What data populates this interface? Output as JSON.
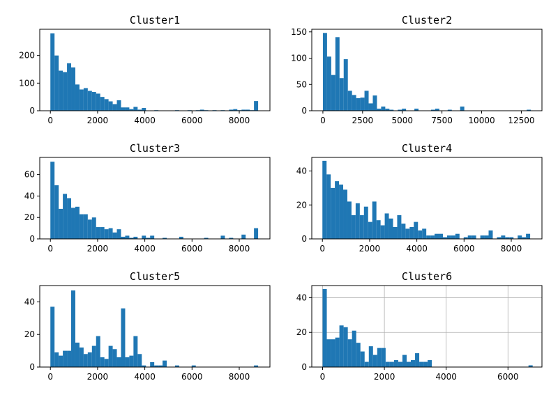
{
  "chart_data": [
    {
      "type": "bar",
      "title": "Cluster1",
      "xlim": [
        -450,
        9300
      ],
      "ylim": [
        0,
        295
      ],
      "grid": false,
      "xticks": [
        0,
        2000,
        4000,
        6000,
        8000
      ],
      "xtick_labels": [
        "0",
        "2000",
        "4000",
        "6000",
        "8000"
      ],
      "yticks": [
        0,
        100,
        200
      ],
      "ytick_labels": [
        "0",
        "100",
        "200"
      ],
      "bin_start": 0,
      "bin_width": 176,
      "values": [
        280,
        200,
        145,
        140,
        172,
        157,
        95,
        77,
        82,
        72,
        68,
        62,
        50,
        42,
        34,
        24,
        38,
        12,
        12,
        6,
        14,
        4,
        10,
        0,
        0,
        2,
        0,
        0,
        0,
        0,
        2,
        0,
        0,
        2,
        0,
        2,
        4,
        2,
        0,
        2,
        0,
        2,
        0,
        4,
        6,
        2,
        4,
        4,
        2,
        35
      ]
    },
    {
      "type": "bar",
      "title": "Cluster2",
      "xlim": [
        -700,
        13800
      ],
      "ylim": [
        0,
        155
      ],
      "grid": false,
      "xticks": [
        0,
        2500,
        5000,
        7500,
        10000,
        12500
      ],
      "xtick_labels": [
        "0",
        "2500",
        "5000",
        "7500",
        "10000",
        "12500"
      ],
      "yticks": [
        0,
        50,
        100,
        150
      ],
      "ytick_labels": [
        "0",
        "50",
        "100",
        "150"
      ],
      "bin_start": 0,
      "bin_width": 262,
      "values": [
        148,
        103,
        68,
        140,
        62,
        98,
        38,
        30,
        24,
        25,
        38,
        14,
        29,
        4,
        8,
        4,
        2,
        0,
        2,
        4,
        0,
        0,
        4,
        0,
        0,
        0,
        2,
        4,
        0,
        0,
        2,
        0,
        0,
        8,
        0,
        0,
        0,
        0,
        0,
        0,
        0,
        0,
        0,
        0,
        0,
        0,
        0,
        0,
        0,
        2
      ]
    },
    {
      "type": "bar",
      "title": "Cluster3",
      "xlim": [
        -450,
        9300
      ],
      "ylim": [
        0,
        76
      ],
      "grid": false,
      "xticks": [
        0,
        2000,
        4000,
        6000,
        8000
      ],
      "xtick_labels": [
        "0",
        "2000",
        "4000",
        "6000",
        "8000"
      ],
      "yticks": [
        0,
        20,
        40,
        60
      ],
      "ytick_labels": [
        "0",
        "20",
        "40",
        "60"
      ],
      "bin_start": 0,
      "bin_width": 176,
      "values": [
        72,
        50,
        28,
        42,
        38,
        29,
        30,
        23,
        23,
        18,
        20,
        11,
        11,
        9,
        10,
        6,
        9,
        2,
        3,
        1,
        2,
        0,
        3,
        1,
        3,
        0,
        0,
        1,
        0,
        0,
        0,
        2,
        0,
        0,
        0,
        0,
        0,
        1,
        0,
        0,
        0,
        3,
        0,
        1,
        0,
        0,
        4,
        0,
        0,
        10
      ]
    },
    {
      "type": "bar",
      "title": "Cluster4",
      "xlim": [
        -450,
        9300
      ],
      "ylim": [
        0,
        48
      ],
      "grid": false,
      "xticks": [
        0,
        2000,
        4000,
        6000,
        8000
      ],
      "xtick_labels": [
        "0",
        "2000",
        "4000",
        "6000",
        "8000"
      ],
      "yticks": [
        0,
        20,
        40
      ],
      "ytick_labels": [
        "0",
        "20",
        "40"
      ],
      "bin_start": 0,
      "bin_width": 176,
      "values": [
        46,
        38,
        30,
        34,
        32,
        29,
        22,
        14,
        21,
        14,
        19,
        10,
        22,
        11,
        8,
        15,
        12,
        7,
        14,
        9,
        6,
        7,
        10,
        5,
        6,
        2,
        2,
        3,
        3,
        1,
        2,
        2,
        3,
        0,
        1,
        2,
        2,
        0,
        2,
        2,
        5,
        0,
        1,
        2,
        1,
        1,
        0,
        2,
        1,
        3
      ]
    },
    {
      "type": "bar",
      "title": "Cluster5",
      "xlim": [
        -450,
        9300
      ],
      "ylim": [
        0,
        50
      ],
      "grid": false,
      "xticks": [
        0,
        2000,
        4000,
        6000,
        8000
      ],
      "xtick_labels": [
        "0",
        "2000",
        "4000",
        "6000",
        "8000"
      ],
      "yticks": [
        0,
        20,
        40
      ],
      "ytick_labels": [
        "0",
        "20",
        "40"
      ],
      "bin_start": 0,
      "bin_width": 176,
      "values": [
        37,
        9,
        7,
        10,
        10,
        47,
        15,
        12,
        8,
        9,
        13,
        19,
        6,
        5,
        13,
        11,
        6,
        36,
        6,
        7,
        19,
        8,
        1,
        0,
        3,
        1,
        1,
        4,
        0,
        0,
        1,
        0,
        0,
        0,
        1,
        0,
        0,
        0,
        0,
        0,
        0,
        0,
        0,
        0,
        0,
        0,
        0,
        0,
        0,
        1
      ]
    },
    {
      "type": "bar",
      "title": "Cluster6",
      "xlim": [
        -350,
        7100
      ],
      "ylim": [
        0,
        47
      ],
      "grid": true,
      "xticks": [
        0,
        2000,
        4000,
        6000
      ],
      "xtick_labels": [
        "0",
        "2000",
        "4000",
        "6000"
      ],
      "yticks": [
        0,
        20,
        40
      ],
      "ytick_labels": [
        "0",
        "20",
        "40"
      ],
      "bin_start": 0,
      "bin_width": 136,
      "values": [
        45,
        16,
        16,
        17,
        24,
        23,
        16,
        21,
        14,
        9,
        3,
        12,
        7,
        11,
        11,
        3,
        3,
        4,
        3,
        7,
        3,
        4,
        8,
        3,
        3,
        4,
        0,
        0,
        0,
        0,
        0,
        0,
        0,
        0,
        0,
        0,
        0,
        0,
        0,
        0,
        0,
        0,
        0,
        0,
        0,
        0,
        0,
        0,
        0,
        1
      ]
    }
  ]
}
